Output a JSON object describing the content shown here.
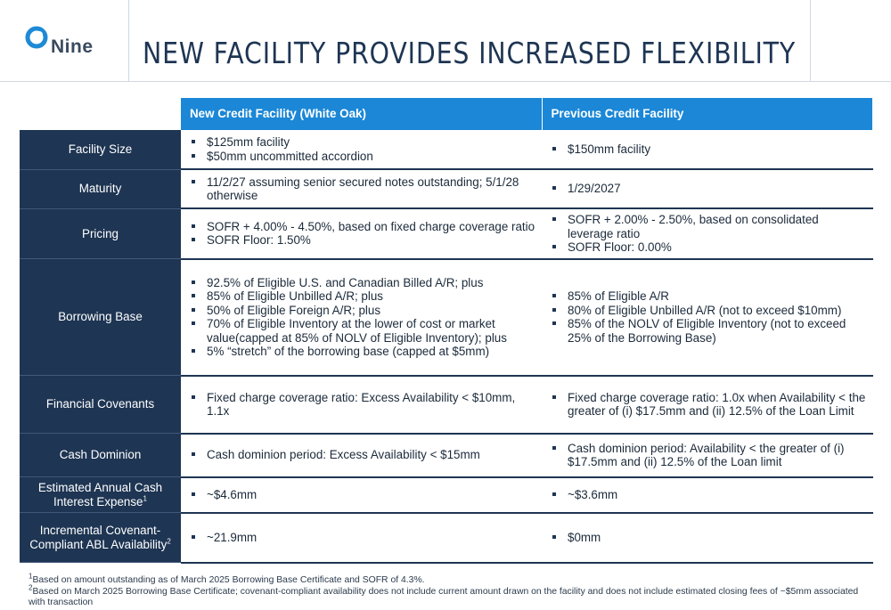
{
  "brand": {
    "logo_text": "Nine"
  },
  "title": "NEW FACILITY PROVIDES INCREASED FLEXIBILITY",
  "table": {
    "headers": [
      "New Credit Facility (White Oak)",
      "Previous Credit Facility"
    ],
    "rows": [
      {
        "label": "Facility Size",
        "new": [
          "$125mm facility",
          "$50mm uncommitted accordion"
        ],
        "prev": [
          "$150mm facility"
        ]
      },
      {
        "label": "Maturity",
        "new": [
          "11/2/27 assuming senior secured notes outstanding; 5/1/28 otherwise"
        ],
        "prev": [
          "1/29/2027"
        ]
      },
      {
        "label": "Pricing",
        "new": [
          "SOFR + 4.00% - 4.50%, based on fixed charge coverage ratio",
          "SOFR Floor:  1.50%"
        ],
        "prev": [
          "SOFR + 2.00% - 2.50%, based on consolidated leverage ratio",
          "SOFR Floor:  0.00%"
        ]
      },
      {
        "label": "Borrowing Base",
        "new": [
          "92.5% of Eligible U.S. and Canadian Billed A/R; plus",
          "85% of Eligible Unbilled A/R; plus",
          "50% of Eligible Foreign A/R; plus",
          "70% of Eligible Inventory at the lower of cost or market value(capped at 85% of NOLV of Eligible Inventory); plus",
          "5% “stretch” of the borrowing base (capped at $5mm)"
        ],
        "prev": [
          "85% of Eligible A/R",
          "80% of Eligible Unbilled A/R (not to exceed $10mm)",
          "85% of the NOLV of Eligible Inventory (not to exceed 25% of the Borrowing Base)"
        ]
      },
      {
        "label": "Financial Covenants",
        "new": [
          "Fixed charge coverage ratio:  Excess Availability < $10mm, 1.1x"
        ],
        "prev": [
          "Fixed charge coverage ratio:  1.0x when Availability < the greater of (i) $17.5mm and (ii) 12.5% of the Loan Limit"
        ]
      },
      {
        "label": "Cash Dominion",
        "new": [
          "Cash dominion period:  Excess Availability < $15mm"
        ],
        "prev": [
          "Cash dominion period: Availability < the greater of (i) $17.5mm and (ii) 12.5% of the Loan limit"
        ]
      },
      {
        "label": "Estimated Annual Cash Interest Expense",
        "sup": "1",
        "new": [
          "~$4.6mm"
        ],
        "prev": [
          "~$3.6mm"
        ]
      },
      {
        "label": "Incremental Covenant-Compliant ABL Availability",
        "sup": "2",
        "new": [
          "~21.9mm"
        ],
        "prev": [
          "$0mm"
        ]
      }
    ]
  },
  "footnotes": [
    {
      "mark": "1",
      "text": "Based on amount outstanding as of March 2025 Borrowing Base Certificate and SOFR of 4.3%."
    },
    {
      "mark": "2",
      "text": "Based on March 2025 Borrowing Base Certificate; covenant-compliant availability does not include current amount drawn on the facility and does not include estimated closing fees of ~$5mm associated with transaction"
    }
  ]
}
